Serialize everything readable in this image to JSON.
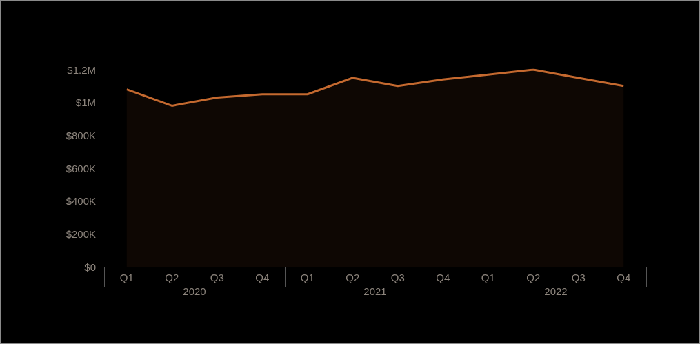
{
  "chart_data": {
    "type": "area",
    "categories": [
      "Q1",
      "Q2",
      "Q3",
      "Q4",
      "Q1",
      "Q2",
      "Q3",
      "Q4",
      "Q1",
      "Q2",
      "Q3",
      "Q4"
    ],
    "series": [
      {
        "color": "#c4692f",
        "values": [
          1080000,
          980000,
          1030000,
          1050000,
          1050000,
          1150000,
          1100000,
          1140000,
          1170000,
          1200000,
          1150000,
          1100000
        ]
      }
    ],
    "ylim": [
      0,
      1200000
    ],
    "yticks": [
      {
        "value": 0,
        "label": "$0"
      },
      {
        "value": 200000,
        "label": "$200K"
      },
      {
        "value": 400000,
        "label": "$400K"
      },
      {
        "value": 600000,
        "label": "$600K"
      },
      {
        "value": 800000,
        "label": "$800K"
      },
      {
        "value": 1000000,
        "label": "$1M"
      },
      {
        "value": 1200000,
        "label": "$1.2M"
      }
    ],
    "annotations": [
      "2020",
      "2021",
      "2022"
    ],
    "grid": false,
    "marker": "none",
    "line_style": "solid"
  }
}
